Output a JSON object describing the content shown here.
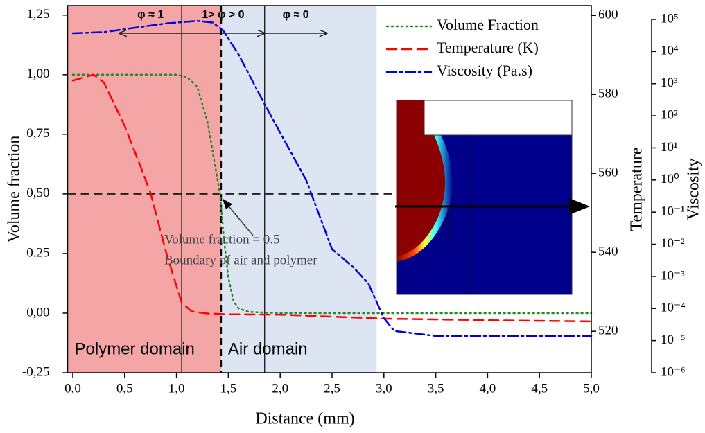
{
  "chart_data": {
    "type": "line",
    "x_label": "Distance (mm)",
    "y_label": "Volume fraction",
    "y2_label": "Temperature",
    "y3_label": "Viscosity",
    "xlim": [
      -0.05,
      5.0
    ],
    "xticks": [
      {
        "value": 0,
        "label": "0,0"
      },
      {
        "value": 0.5,
        "label": "0,5"
      },
      {
        "value": 1,
        "label": "1,0"
      },
      {
        "value": 1.5,
        "label": "1,5"
      },
      {
        "value": 2,
        "label": "2,0"
      },
      {
        "value": 2.5,
        "label": "2,5"
      },
      {
        "value": 3,
        "label": "3,0"
      },
      {
        "value": 3.5,
        "label": "3,5"
      },
      {
        "value": 4,
        "label": "4,0"
      },
      {
        "value": 4.5,
        "label": "4,5"
      },
      {
        "value": 5,
        "label": "5,0"
      }
    ],
    "ylim": [
      -0.25,
      1.29
    ],
    "yticks": [
      {
        "value": -0.25,
        "label": "-0,25"
      },
      {
        "value": 0,
        "label": "0,00"
      },
      {
        "value": 0.25,
        "label": "0,25"
      },
      {
        "value": 0.5,
        "label": "0,50"
      },
      {
        "value": 0.75,
        "label": "0,75"
      },
      {
        "value": 1,
        "label": "1,00"
      },
      {
        "value": 1.25,
        "label": "1,25"
      }
    ],
    "y2lim": [
      509.5,
      602.5
    ],
    "y2ticks": [
      520,
      540,
      560,
      580,
      600
    ],
    "y3lim": [
      1e-06,
      100000.0
    ],
    "y3_log": true,
    "y3ticks": [
      {
        "value": 100000.0,
        "label": "10⁵"
      },
      {
        "value": 10000.0,
        "label": "10⁴"
      },
      {
        "value": 1000.0,
        "label": "10³"
      },
      {
        "value": 100.0,
        "label": "10²"
      },
      {
        "value": 10.0,
        "label": "10¹"
      },
      {
        "value": 1,
        "label": "10⁰"
      },
      {
        "value": 0.1,
        "label": "10⁻¹"
      },
      {
        "value": 0.01,
        "label": "10⁻²"
      },
      {
        "value": 0.001,
        "label": "10⁻³"
      },
      {
        "value": 0.0001,
        "label": "10⁻⁴"
      },
      {
        "value": 1e-05,
        "label": "10⁻⁵"
      },
      {
        "value": 1e-06,
        "label": "10⁻⁶"
      }
    ],
    "series": [
      {
        "name": "Volume Fraction",
        "color": "#228b22",
        "dash": "dotted",
        "axis": "y",
        "x": [
          0,
          0.2,
          0.5,
          1.0,
          1.1,
          1.2,
          1.3,
          1.38,
          1.42,
          1.46,
          1.5,
          1.55,
          1.6,
          1.7,
          2.0,
          3.0,
          4.0,
          5.0
        ],
        "values": [
          1,
          1,
          1,
          1,
          0.99,
          0.95,
          0.8,
          0.6,
          0.5,
          0.3,
          0.15,
          0.05,
          0.02,
          0.005,
          0,
          0,
          0,
          0
        ]
      },
      {
        "name": "Temperature (K)",
        "color": "#ff0000",
        "dash": "dashed",
        "axis": "y2",
        "x": [
          0,
          0.2,
          0.3,
          0.5,
          0.65,
          0.75,
          0.9,
          1.05,
          1.15,
          1.3,
          1.5,
          2.0,
          3.0,
          4.0,
          5.0
        ],
        "values": [
          583.5,
          585,
          583,
          572,
          562,
          555,
          540,
          527.2,
          525,
          524.5,
          524.3,
          524.2,
          523.2,
          522.8,
          522.5
        ]
      },
      {
        "name": "Viscosity (Pa.s)",
        "color": "#0000dd",
        "dash": "dashdot",
        "axis": "y3",
        "x": [
          0,
          0.3,
          0.6,
          0.9,
          1.2,
          1.35,
          1.45,
          1.6,
          1.85,
          2.05,
          2.25,
          2.5,
          2.7,
          2.85,
          3.0,
          3.1,
          3.5,
          5.0
        ],
        "values": [
          37000,
          40000,
          55000,
          75000,
          90000,
          80000,
          45000,
          8000,
          230,
          15,
          1,
          0.007,
          0.002,
          0.0006,
          5e-05,
          2e-05,
          1.4e-05,
          1.4e-05
        ]
      }
    ],
    "regions": [
      {
        "label": "Polymer domain",
        "from": -0.05,
        "to": 1.43,
        "color": "#f4a6a6"
      },
      {
        "label": "Air domain",
        "from": 1.43,
        "to": 2.93,
        "color": "#dde5f3"
      }
    ],
    "vlines": [
      1.05,
      1.85
    ],
    "boundary": {
      "x": 1.43,
      "y": 0.5
    },
    "phases": [
      {
        "label": "φ ≈ 1",
        "from": 0.45,
        "to": 1.05
      },
      {
        "label": "1> φ > 0",
        "from": 1.05,
        "to": 1.85
      },
      {
        "label": "φ ≈ 0",
        "from": 1.85,
        "to": 2.45
      }
    ],
    "annotation": [
      "Volume fraction = 0.5",
      "Boundary of air and polymer"
    ]
  }
}
